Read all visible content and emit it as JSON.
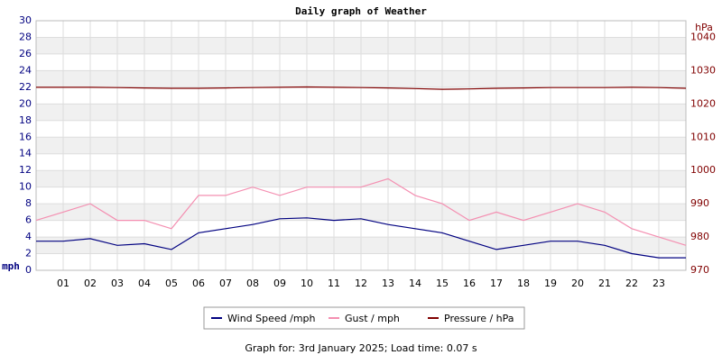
{
  "chart_data": {
    "type": "line",
    "title": "Daily graph of Weather",
    "y_label": "mph",
    "y2_label": "hPa",
    "footer": "Graph for: 3rd January 2025; Load time: 0.07 s",
    "x": [
      0,
      1,
      2,
      3,
      4,
      5,
      6,
      7,
      8,
      9,
      10,
      11,
      12,
      13,
      14,
      15,
      16,
      17,
      18,
      19,
      20,
      21,
      22,
      23,
      24
    ],
    "xlim": [
      0,
      24
    ],
    "xticks": [
      {
        "value": 1,
        "label": "01"
      },
      {
        "value": 2,
        "label": "02"
      },
      {
        "value": 3,
        "label": "03"
      },
      {
        "value": 4,
        "label": "04"
      },
      {
        "value": 5,
        "label": "05"
      },
      {
        "value": 6,
        "label": "06"
      },
      {
        "value": 7,
        "label": "07"
      },
      {
        "value": 8,
        "label": "08"
      },
      {
        "value": 9,
        "label": "09"
      },
      {
        "value": 10,
        "label": "10"
      },
      {
        "value": 11,
        "label": "11"
      },
      {
        "value": 12,
        "label": "12"
      },
      {
        "value": 13,
        "label": "13"
      },
      {
        "value": 14,
        "label": "14"
      },
      {
        "value": 15,
        "label": "15"
      },
      {
        "value": 16,
        "label": "16"
      },
      {
        "value": 17,
        "label": "17"
      },
      {
        "value": 18,
        "label": "18"
      },
      {
        "value": 19,
        "label": "19"
      },
      {
        "value": 20,
        "label": "20"
      },
      {
        "value": 21,
        "label": "21"
      },
      {
        "value": 22,
        "label": "22"
      },
      {
        "value": 23,
        "label": "23"
      }
    ],
    "ylim": [
      0,
      30
    ],
    "yticks": [
      0,
      2,
      4,
      6,
      8,
      10,
      12,
      14,
      16,
      18,
      20,
      22,
      24,
      26,
      28,
      30
    ],
    "y2lim": [
      970,
      1045
    ],
    "y2ticks": [
      970,
      980,
      990,
      1000,
      1010,
      1020,
      1030,
      1040
    ],
    "grid": true,
    "series": [
      {
        "name": "Wind Speed /mph",
        "color": "#000080",
        "values": [
          3.5,
          3.5,
          3.8,
          3,
          3.2,
          2.5,
          4.5,
          5,
          5.5,
          6.2,
          6.3,
          6,
          6.2,
          5.5,
          5,
          4.5,
          3.5,
          2.5,
          3,
          3.5,
          3.5,
          3,
          2,
          1.5,
          1.5
        ]
      },
      {
        "name": "Gust / mph",
        "color": "#f48fb1",
        "values": [
          6,
          7,
          8,
          6,
          6,
          5,
          9,
          9,
          10,
          9,
          10,
          10,
          10,
          11,
          9,
          8,
          6,
          7,
          6,
          7,
          8,
          7,
          5,
          4,
          3
        ]
      },
      {
        "name": "Pressure / hPa",
        "color": "#800000",
        "axis": "y2",
        "values": [
          1025,
          1025,
          1025,
          1024.9,
          1024.8,
          1024.7,
          1024.7,
          1024.8,
          1024.9,
          1025,
          1025.1,
          1025,
          1024.9,
          1024.8,
          1024.6,
          1024.4,
          1024.5,
          1024.7,
          1024.8,
          1024.9,
          1024.9,
          1024.9,
          1025,
          1024.9,
          1024.7
        ]
      }
    ]
  }
}
